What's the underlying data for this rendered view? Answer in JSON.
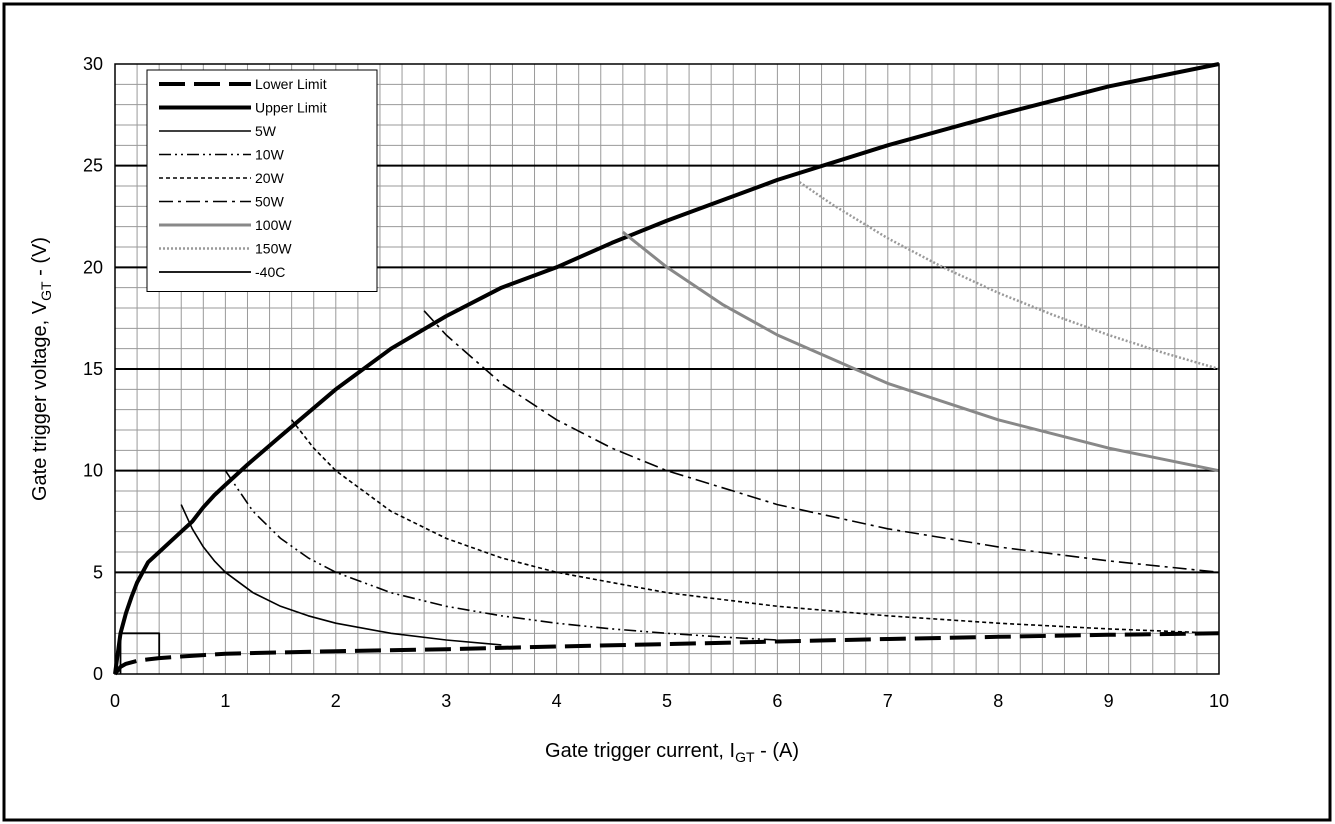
{
  "chart_data": {
    "type": "line",
    "xlabel": {
      "main": "Gate trigger current,  I",
      "sub": "GT",
      "tail": " - (A)"
    },
    "ylabel": {
      "main": "Gate trigger voltage, V",
      "sub": "GT",
      "tail": " - (V)"
    },
    "xlim": [
      0,
      10
    ],
    "ylim": [
      0,
      30
    ],
    "x_ticks": [
      "0",
      "1",
      "2",
      "3",
      "4",
      "5",
      "6",
      "7",
      "8",
      "9",
      "10"
    ],
    "y_ticks": [
      "0",
      "5",
      "10",
      "15",
      "20",
      "25",
      "30"
    ],
    "grid": {
      "x_minor": 0.2,
      "y_minor": 1,
      "y_major": 5
    },
    "legend_position": "top-left",
    "series": [
      {
        "name": "Lower Limit",
        "style": "long-dash-thick",
        "points": [
          [
            0,
            0
          ],
          [
            0.05,
            0.35
          ],
          [
            0.1,
            0.5
          ],
          [
            0.2,
            0.65
          ],
          [
            0.3,
            0.72
          ],
          [
            0.4,
            0.78
          ],
          [
            0.6,
            0.86
          ],
          [
            0.8,
            0.93
          ],
          [
            1,
            1
          ],
          [
            2,
            1.12
          ],
          [
            3,
            1.22
          ],
          [
            4,
            1.35
          ],
          [
            5,
            1.47
          ],
          [
            6,
            1.6
          ],
          [
            7,
            1.72
          ],
          [
            8,
            1.83
          ],
          [
            9,
            1.93
          ],
          [
            10,
            2
          ]
        ]
      },
      {
        "name": "Upper Limit",
        "style": "solid-thick",
        "points": [
          [
            0,
            0
          ],
          [
            0.05,
            2
          ],
          [
            0.1,
            3
          ],
          [
            0.15,
            3.8
          ],
          [
            0.2,
            4.5
          ],
          [
            0.3,
            5.5
          ],
          [
            0.4,
            6
          ],
          [
            0.5,
            6.5
          ],
          [
            0.6,
            7
          ],
          [
            0.7,
            7.5
          ],
          [
            0.8,
            8.2
          ],
          [
            0.9,
            8.8
          ],
          [
            1,
            9.3
          ],
          [
            1.2,
            10.3
          ],
          [
            1.5,
            11.7
          ],
          [
            2,
            14
          ],
          [
            2.5,
            16
          ],
          [
            3,
            17.6
          ],
          [
            3.5,
            19
          ],
          [
            4,
            20
          ],
          [
            4.5,
            21.2
          ],
          [
            5,
            22.3
          ],
          [
            6,
            24.3
          ],
          [
            7,
            26
          ],
          [
            8,
            27.5
          ],
          [
            9,
            28.9
          ],
          [
            10,
            30
          ]
        ]
      },
      {
        "name": "5W",
        "style": "solid-thin",
        "points": [
          [
            0.6,
            8.33
          ],
          [
            0.7,
            7.14
          ],
          [
            0.8,
            6.25
          ],
          [
            0.9,
            5.56
          ],
          [
            1,
            5
          ],
          [
            1.25,
            4
          ],
          [
            1.5,
            3.33
          ],
          [
            1.75,
            2.86
          ],
          [
            2,
            2.5
          ],
          [
            2.5,
            2
          ],
          [
            3,
            1.67
          ],
          [
            3.5,
            1.43
          ]
        ]
      },
      {
        "name": "10W",
        "style": "dash-dot-dot",
        "points": [
          [
            1,
            10
          ],
          [
            1.25,
            8
          ],
          [
            1.5,
            6.67
          ],
          [
            1.75,
            5.71
          ],
          [
            2,
            5
          ],
          [
            2.5,
            4
          ],
          [
            3,
            3.33
          ],
          [
            3.5,
            2.86
          ],
          [
            4,
            2.5
          ],
          [
            4.5,
            2.22
          ],
          [
            5,
            2
          ],
          [
            5.5,
            1.82
          ],
          [
            6,
            1.67
          ]
        ]
      },
      {
        "name": "20W",
        "style": "short-dash",
        "points": [
          [
            1.6,
            12.5
          ],
          [
            1.8,
            11.11
          ],
          [
            2,
            10
          ],
          [
            2.5,
            8
          ],
          [
            3,
            6.67
          ],
          [
            3.5,
            5.71
          ],
          [
            4,
            5
          ],
          [
            5,
            4
          ],
          [
            6,
            3.33
          ],
          [
            7,
            2.86
          ],
          [
            8,
            2.5
          ],
          [
            9,
            2.22
          ],
          [
            10,
            2
          ]
        ]
      },
      {
        "name": "50W",
        "style": "dash-dot",
        "points": [
          [
            2.8,
            17.86
          ],
          [
            3,
            16.67
          ],
          [
            3.5,
            14.29
          ],
          [
            4,
            12.5
          ],
          [
            4.5,
            11.11
          ],
          [
            5,
            10
          ],
          [
            6,
            8.33
          ],
          [
            7,
            7.14
          ],
          [
            8,
            6.25
          ],
          [
            9,
            5.56
          ],
          [
            10,
            5
          ]
        ]
      },
      {
        "name": "100W",
        "style": "solid-gray",
        "points": [
          [
            4.6,
            21.74
          ],
          [
            5,
            20
          ],
          [
            5.5,
            18.18
          ],
          [
            6,
            16.67
          ],
          [
            7,
            14.29
          ],
          [
            8,
            12.5
          ],
          [
            9,
            11.11
          ],
          [
            10,
            10
          ]
        ]
      },
      {
        "name": "150W",
        "style": "dotted-gray",
        "points": [
          [
            6.2,
            24.19
          ],
          [
            6.5,
            23.08
          ],
          [
            7,
            21.43
          ],
          [
            7.5,
            20
          ],
          [
            8,
            18.75
          ],
          [
            8.5,
            17.65
          ],
          [
            9,
            16.67
          ],
          [
            9.5,
            15.79
          ],
          [
            10,
            15
          ]
        ]
      },
      {
        "name": "-40C",
        "style": "solid-box",
        "points": [
          [
            0.05,
            0
          ],
          [
            0.05,
            2
          ],
          [
            0.4,
            2
          ],
          [
            0.4,
            0.8
          ]
        ]
      }
    ]
  }
}
